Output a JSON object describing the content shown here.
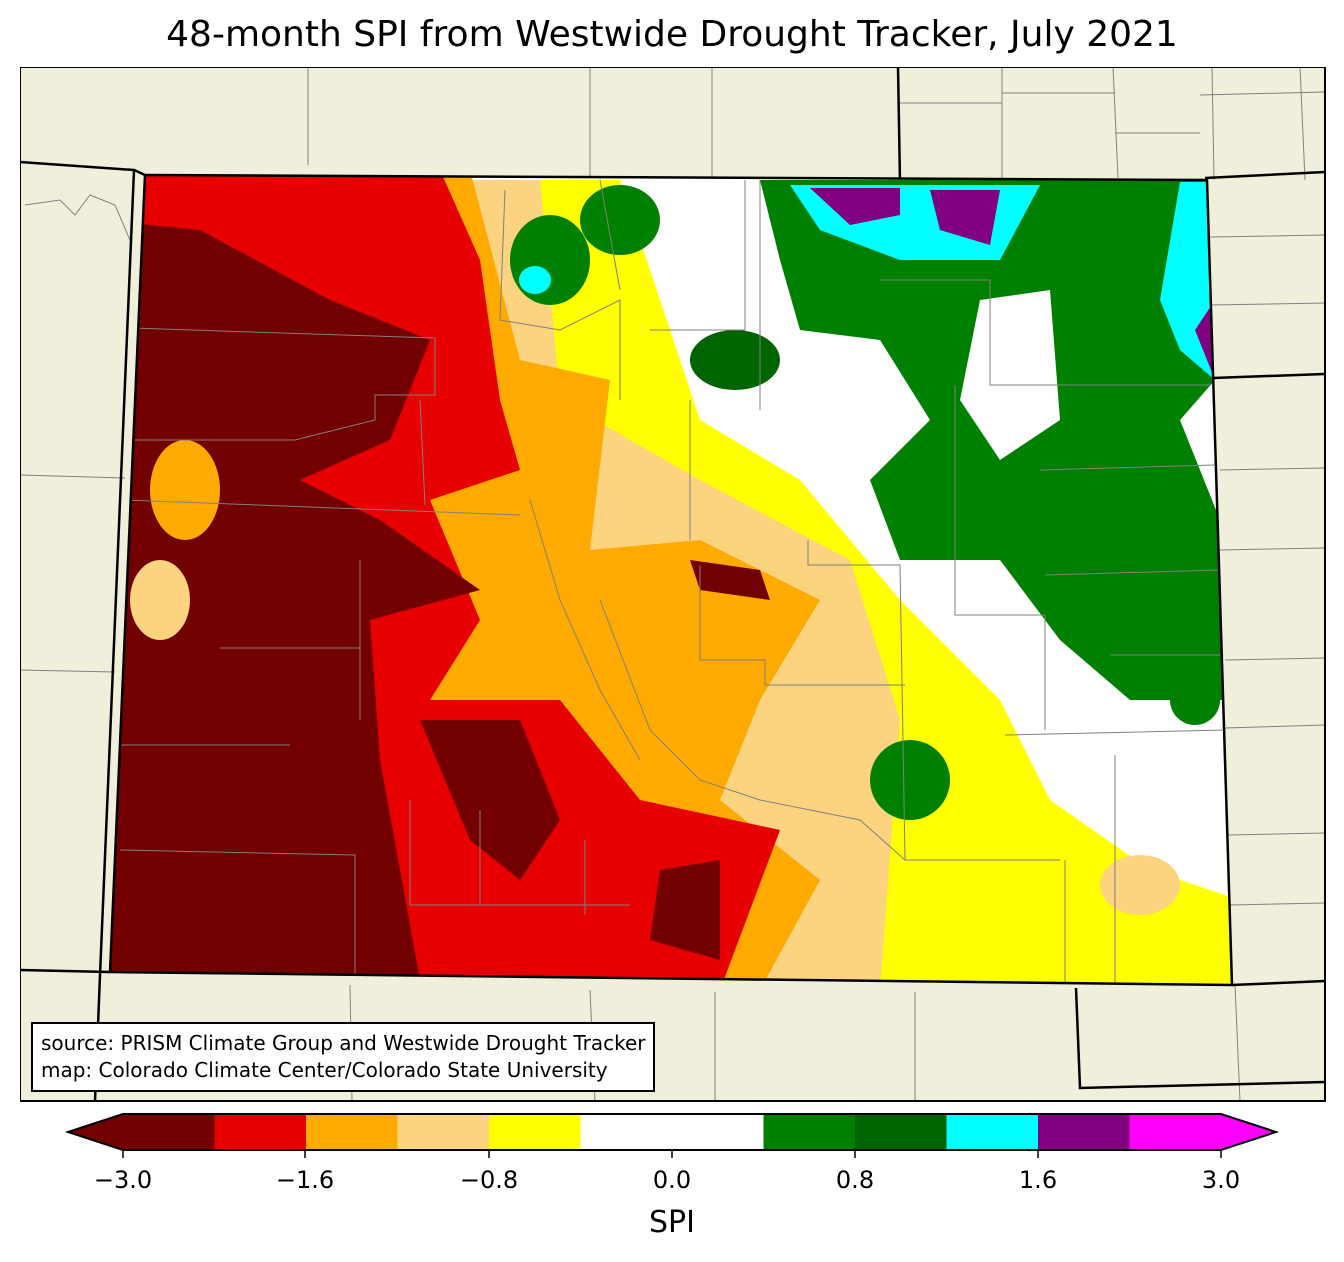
{
  "title": "48-month SPI from Westwide Drought Tracker, July 2021",
  "source_lines": [
    "source: PRISM Climate Group and Westwide Drought Tracker",
    "map: Colorado Climate Center/Colorado State University"
  ],
  "colorbar": {
    "label": "SPI",
    "boundaries": [
      -3.0,
      -2.0,
      -1.6,
      -1.2,
      -0.8,
      -0.4,
      0.4,
      0.8,
      1.2,
      1.6,
      2.0,
      3.0
    ],
    "colors": [
      "#730000",
      "#e60000",
      "#ffaa00",
      "#fcd37f",
      "#ffff00",
      "#ffffff",
      "#008000",
      "#006400",
      "#00ffff",
      "#800080",
      "#ff00ff"
    ],
    "ticks": [
      "−3.0",
      "−1.6",
      "−0.8",
      "0.0",
      "0.8",
      "1.6",
      "3.0"
    ],
    "extend": "both"
  },
  "colors": {
    "land": "#efefdb",
    "county_lines": "#808080"
  }
}
